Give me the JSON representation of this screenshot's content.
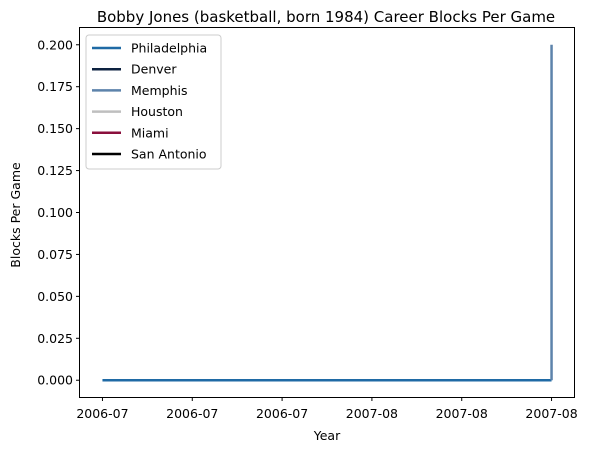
{
  "chart_data": {
    "type": "line",
    "title": "Bobby Jones (basketball, born 1984) Career Blocks Per Game",
    "xlabel": "Year",
    "ylabel": "Blocks Per Game",
    "x_tick_labels": [
      "2006-07",
      "2006-07",
      "2006-07",
      "2007-08",
      "2007-08",
      "2007-08"
    ],
    "y_ticks": [
      "0.000",
      "0.025",
      "0.050",
      "0.075",
      "0.100",
      "0.125",
      "0.150",
      "0.175",
      "0.200"
    ],
    "ylim": [
      -0.01,
      0.21
    ],
    "xlim": [
      -0.05,
      1.05
    ],
    "legend_position": "top-left",
    "grid": false,
    "series": [
      {
        "name": "Philadelphia",
        "color": "#1f6aa5",
        "x": [
          0,
          1
        ],
        "values": [
          0.0,
          0.0
        ]
      },
      {
        "name": "Denver",
        "color": "#0d2240",
        "x": [],
        "values": []
      },
      {
        "name": "Memphis",
        "color": "#5d83ab",
        "x": [
          1,
          1
        ],
        "values": [
          0.0,
          0.2
        ]
      },
      {
        "name": "Houston",
        "color": "#bfbfbf",
        "x": [],
        "values": []
      },
      {
        "name": "Miami",
        "color": "#8a0f3c",
        "x": [],
        "values": []
      },
      {
        "name": "San Antonio",
        "color": "#000000",
        "x": [],
        "values": []
      }
    ]
  }
}
